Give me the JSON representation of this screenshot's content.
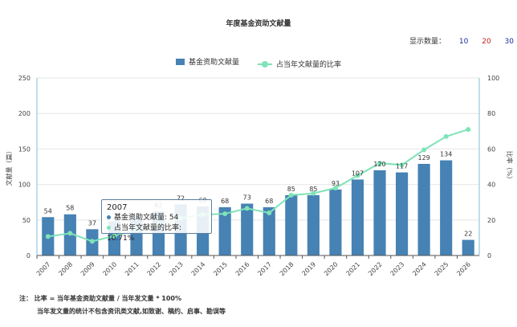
{
  "chart_data": {
    "type": "bar",
    "title": "年度基金资助文献量",
    "categories": [
      "2007",
      "2008",
      "2009",
      "2010",
      "2011",
      "2012",
      "2013",
      "2014",
      "2015",
      "2016",
      "2017",
      "2018",
      "2019",
      "2020",
      "2021",
      "2022",
      "2023",
      "2024",
      "2025",
      "2026"
    ],
    "series": [
      {
        "name": "基金资助文献量",
        "type": "bar",
        "axis": "left",
        "color": "#4682b4",
        "values": [
          54,
          58,
          37,
          48,
          55,
          62,
          72,
          69,
          68,
          73,
          68,
          85,
          85,
          93,
          107,
          120,
          117,
          129,
          134,
          22
        ]
      },
      {
        "name": "占当年文献量的比率",
        "type": "line",
        "axis": "right",
        "color": "#7fe3b8",
        "values": [
          10.71,
          12.5,
          8.0,
          11.0,
          14.5,
          17.5,
          21.0,
          23.0,
          23.5,
          26.5,
          24.0,
          34.0,
          35.0,
          38.0,
          45.0,
          52.0,
          51.0,
          59.5,
          67.0,
          71.0
        ]
      }
    ],
    "bar_data_labels": [
      "54",
      "58",
      "37",
      "",
      "",
      "62",
      "72",
      "69",
      "68",
      "73",
      "68",
      "85",
      "85",
      "93",
      "107",
      "120",
      "117",
      "129",
      "134",
      "22"
    ],
    "ylabel_left": "文献量（篇）",
    "ylabel_right": "比率（%）",
    "ylim_left": [
      0,
      250
    ],
    "yticks_left": [
      "0",
      "50",
      "100",
      "150",
      "200",
      "250"
    ],
    "ylim_right": [
      0,
      100
    ],
    "yticks_right": [
      "0",
      "20",
      "40",
      "60",
      "80",
      "100"
    ],
    "grid": true,
    "legend_position": "top-center"
  },
  "display_count": {
    "label": "显示数量：",
    "options": [
      "10",
      "20",
      "30"
    ]
  },
  "tooltip": {
    "year": "2007",
    "count_label": "基金资助文献量: 54",
    "ratio_label": "占当年文献量的比率: 10.71%"
  },
  "notes": {
    "line1": "注：  比率 = 当年基金资助文献量 / 当年发文量 * 100%",
    "line2": "当年发文量的统计不包含资讯类文献,如致谢、稿约、启事、勘误等"
  },
  "colors": {
    "bar": "#4682b4",
    "line": "#7fe3b8",
    "axis": "#82bed6",
    "grid": "#e6e6e6"
  }
}
